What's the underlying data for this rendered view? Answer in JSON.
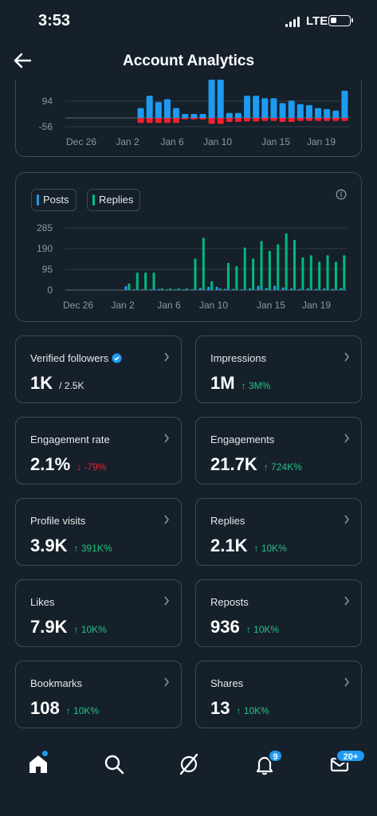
{
  "status_bar": {
    "time": "3:53",
    "network": "LTE"
  },
  "header": {
    "title": "Account Analytics"
  },
  "chart_data": [
    {
      "type": "bar",
      "ytick_labels": [
        "94",
        "-56"
      ],
      "xtick_labels": [
        "Dec 26",
        "Jan 2",
        "Jan 6",
        "Jan 10",
        "Jan 15",
        "Jan 19"
      ],
      "series": [
        {
          "name": "",
          "values": [
            0,
            0,
            0,
            0,
            0,
            0,
            0,
            0,
            20,
            45,
            32,
            38,
            20,
            8,
            8,
            8,
            90,
            90,
            10,
            10,
            45,
            45,
            40,
            40,
            30,
            35,
            28,
            26,
            20,
            18,
            15,
            55
          ]
        },
        {
          "name": "",
          "values": [
            0,
            0,
            0,
            0,
            0,
            0,
            0,
            0,
            -10,
            -10,
            -10,
            -10,
            -10,
            -3,
            -3,
            -3,
            -12,
            -12,
            -8,
            -8,
            -7,
            -7,
            -6,
            -6,
            -8,
            -8,
            -6,
            -6,
            -6,
            -6,
            -6,
            -6
          ]
        }
      ]
    },
    {
      "type": "bar",
      "ylim": [
        0,
        285
      ],
      "ytick_labels": [
        "285",
        "190",
        "95",
        "0"
      ],
      "xtick_labels": [
        "Dec 26",
        "Jan 2",
        "Jan 6",
        "Jan 10",
        "Jan 15",
        "Jan 19"
      ],
      "legend": [
        "Posts",
        "Replies"
      ],
      "series": [
        {
          "name": "Posts",
          "values": [
            0,
            0,
            0,
            0,
            0,
            0,
            0,
            18,
            4,
            4,
            4,
            5,
            4,
            4,
            4,
            4,
            10,
            15,
            15,
            6,
            5,
            4,
            8,
            20,
            10,
            20,
            12,
            8,
            6,
            8,
            6,
            8,
            6,
            10
          ]
        },
        {
          "name": "Replies",
          "values": [
            0,
            0,
            0,
            0,
            0,
            0,
            0,
            30,
            80,
            80,
            80,
            8,
            8,
            8,
            8,
            145,
            240,
            40,
            8,
            125,
            110,
            195,
            145,
            225,
            180,
            210,
            260,
            230,
            150,
            160,
            130,
            160,
            130,
            160
          ]
        }
      ],
      "colors": {
        "Posts": "#1d9bf0",
        "Replies": "#00ba7c"
      }
    }
  ],
  "stats": [
    {
      "label": "Verified followers",
      "value": "1K",
      "sub": "/ 2.5K",
      "trend": "plain",
      "verified": true
    },
    {
      "label": "Impressions",
      "value": "1M",
      "sub": "↑ 3M%",
      "trend": "up"
    },
    {
      "label": "Engagement rate",
      "value": "2.1%",
      "sub": "↓ -79%",
      "trend": "down"
    },
    {
      "label": "Engagements",
      "value": "21.7K",
      "sub": "↑ 724K%",
      "trend": "up"
    },
    {
      "label": "Profile visits",
      "value": "3.9K",
      "sub": "↑ 391K%",
      "trend": "up"
    },
    {
      "label": "Replies",
      "value": "2.1K",
      "sub": "↑ 10K%",
      "trend": "up"
    },
    {
      "label": "Likes",
      "value": "7.9K",
      "sub": "↑ 10K%",
      "trend": "up"
    },
    {
      "label": "Reposts",
      "value": "936",
      "sub": "↑ 10K%",
      "trend": "up"
    },
    {
      "label": "Bookmarks",
      "value": "108",
      "sub": "↑ 10K%",
      "trend": "up"
    },
    {
      "label": "Shares",
      "value": "13",
      "sub": "↑ 10K%",
      "trend": "up"
    }
  ],
  "nav": {
    "items": [
      "home-icon",
      "search-icon",
      "grok-icon",
      "bell-icon",
      "mail-icon"
    ],
    "notifications_badge": "9",
    "messages_badge": "20+"
  },
  "colors": {
    "background": "#15202b",
    "accent": "#1d9bf0",
    "positive": "#00ba7c",
    "negative": "#f4212e",
    "border": "#3c4a58"
  }
}
